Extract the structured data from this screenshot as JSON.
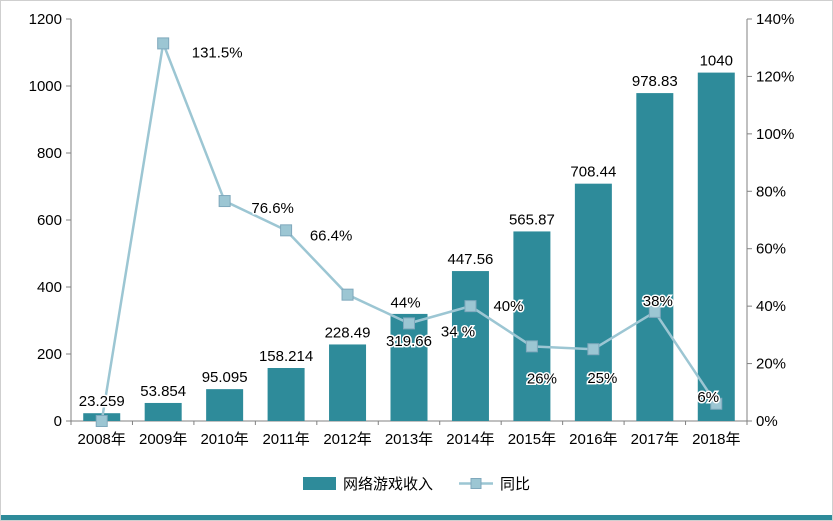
{
  "chart_data": {
    "type": "bar",
    "combo": "bar+line",
    "categories": [
      "2008年",
      "2009年",
      "2010年",
      "2011年",
      "2012年",
      "2013年",
      "2014年",
      "2015年",
      "2016年",
      "2017年",
      "2018年"
    ],
    "series": [
      {
        "name": "网络游戏收入",
        "type": "bar",
        "axis": "left",
        "color": "#2E8B9A",
        "values": [
          23.259,
          53.854,
          95.095,
          158.214,
          228.49,
          319.66,
          447.56,
          565.87,
          708.44,
          978.83,
          1040
        ],
        "labels": [
          "23.259",
          "53.854",
          "95.095",
          "158.214",
          "228.49",
          "319.66",
          "447.56",
          "565.87",
          "708.44",
          "978.83",
          "1040"
        ]
      },
      {
        "name": "同比",
        "type": "line",
        "axis": "right",
        "color": "#9CC6D3",
        "marker_border": "#7FA8BC",
        "values": [
          0,
          131.5,
          76.6,
          66.4,
          44,
          34,
          40,
          26,
          25,
          38,
          6
        ],
        "labels": [
          "",
          "131.5%",
          "76.6%",
          "66.4%",
          "44%",
          "34 %",
          "40%",
          "26%",
          "25%",
          "38%",
          "6%"
        ]
      }
    ],
    "left_axis": {
      "min": 0,
      "max": 1200,
      "tick_values": [
        0,
        200,
        400,
        600,
        800,
        1000,
        1200
      ],
      "tick_labels": [
        "0",
        "200",
        "400",
        "600",
        "800",
        "1000",
        "1200"
      ]
    },
    "right_axis": {
      "min": 0,
      "max": 140,
      "tick_values": [
        0,
        20,
        40,
        60,
        80,
        100,
        120,
        140
      ],
      "tick_labels": [
        "0%",
        "20%",
        "40%",
        "60%",
        "80%",
        "100%",
        "120%",
        "140%"
      ]
    },
    "grid": false,
    "legend_position": "bottom",
    "title": "",
    "xlabel": "",
    "ylabel": ""
  },
  "colors": {
    "axis": "#808080",
    "label_text": "#000000",
    "bottom_strip": "#2E8B9A",
    "frame_border": "#CFCFCF"
  }
}
